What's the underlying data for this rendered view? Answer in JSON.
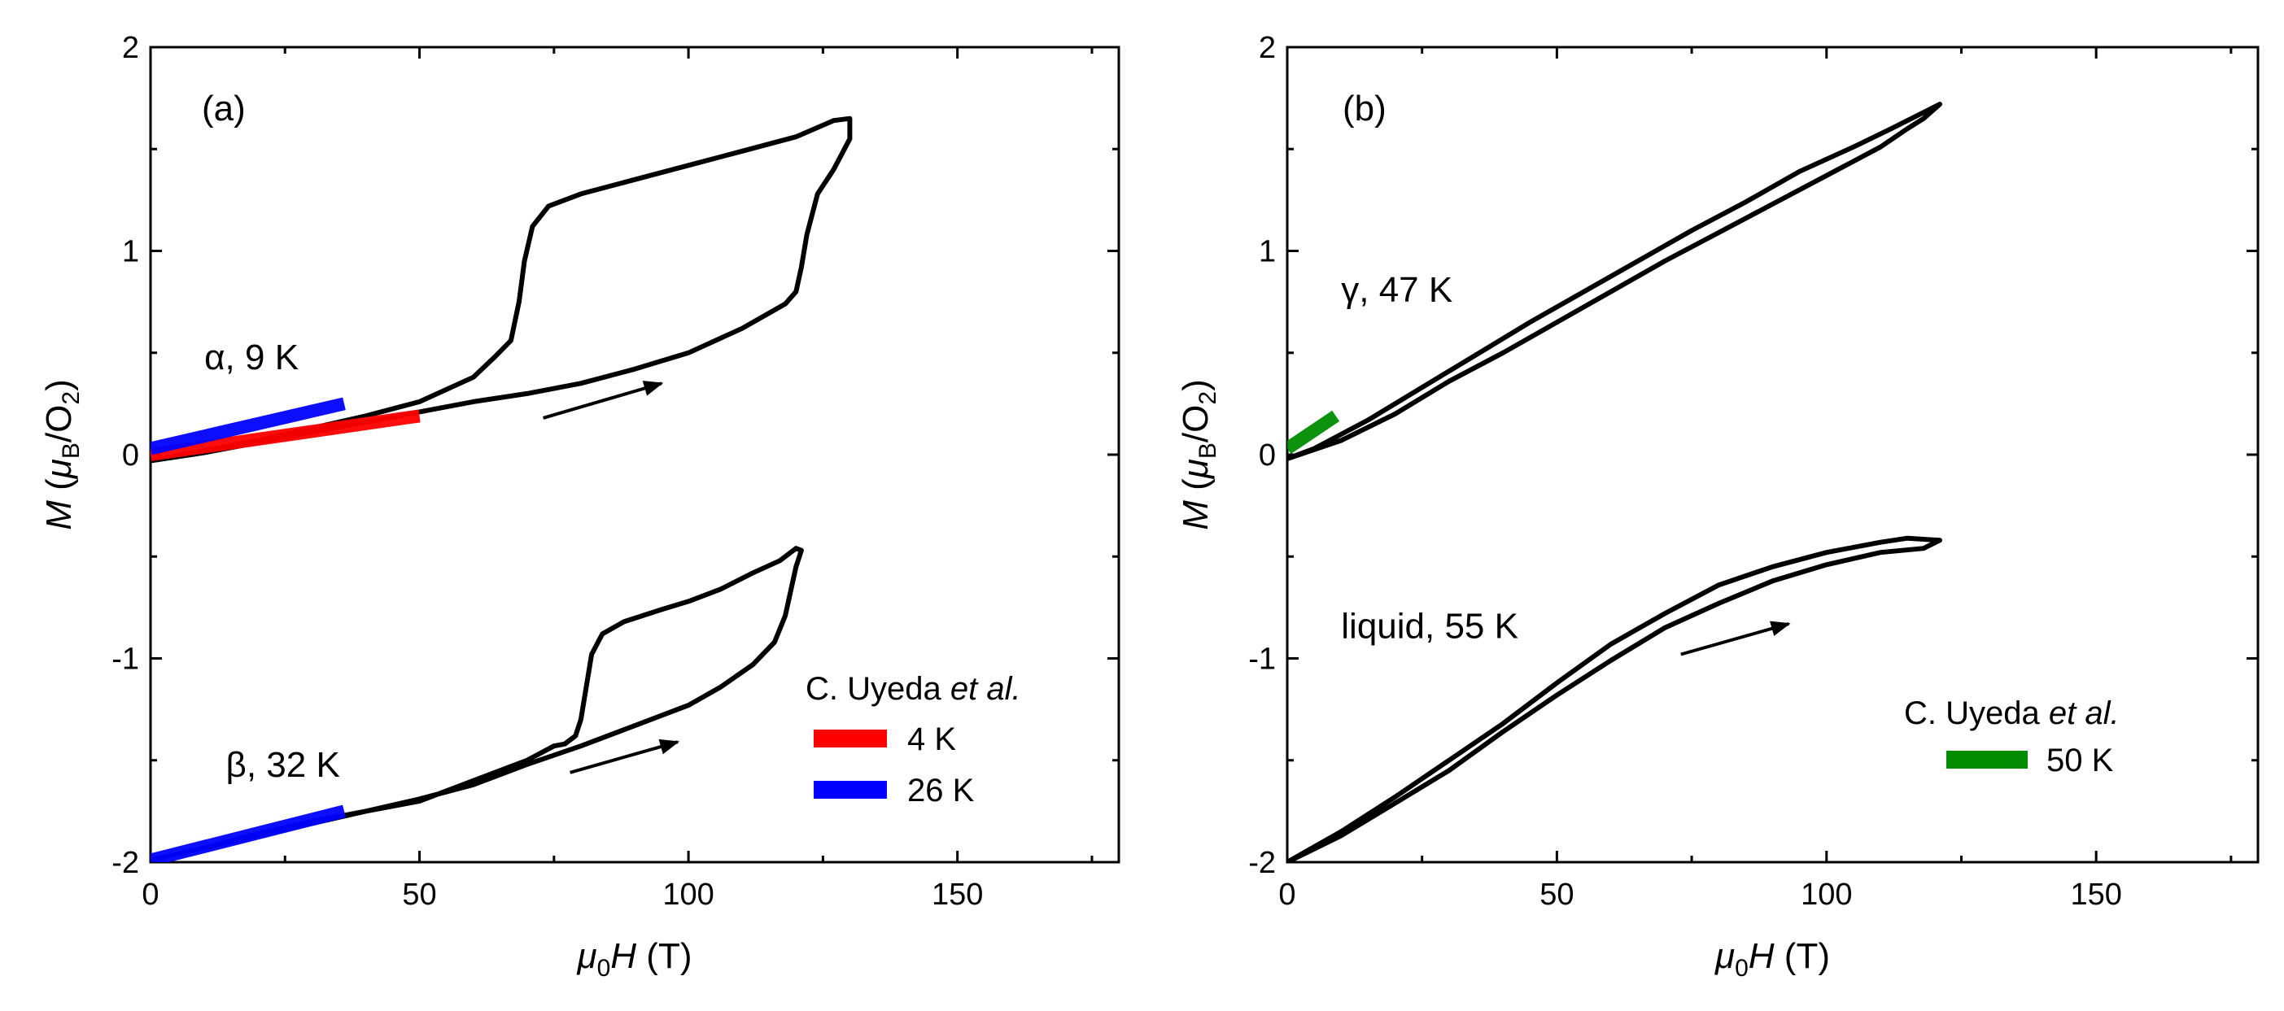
{
  "chart_data": [
    {
      "type": "line",
      "panel_label": "(a)",
      "xlabel": {
        "mu": "μ",
        "sub": "0",
        "var": "H",
        "unit": " (T)"
      },
      "ylabel": {
        "var": "M",
        "open": " (",
        "mu": "μ",
        "sub": "B",
        "mid": "/O",
        "sub2": "2",
        "close": ")"
      },
      "xlim": [
        0,
        180
      ],
      "ylim": [
        -2,
        2
      ],
      "x_ticks": [
        0,
        50,
        100,
        150
      ],
      "x_tick_labels": [
        "0",
        "50",
        "100",
        "150"
      ],
      "y_ticks": [
        -2,
        -1,
        0,
        1,
        2
      ],
      "y_tick_labels": [
        "-2",
        "-1",
        "0",
        "1",
        "2"
      ],
      "annotations": [
        {
          "id": "alpha",
          "text": "α, 9 K",
          "x": 10,
          "y": 0.42
        },
        {
          "id": "beta",
          "text": "β, 32 K",
          "x": 14,
          "y": -1.58
        }
      ],
      "arrows": [
        {
          "from": [
            73,
            0.18
          ],
          "to": [
            95,
            0.35
          ]
        },
        {
          "from": [
            78,
            -1.56
          ],
          "to": [
            98,
            -1.41
          ]
        }
      ],
      "series": [
        {
          "name": "α, 9 K",
          "color": "#000000",
          "points": [
            [
              0,
              -0.03
            ],
            [
              10,
              0.02
            ],
            [
              20,
              0.07
            ],
            [
              30,
              0.13
            ],
            [
              40,
              0.19
            ],
            [
              50,
              0.26
            ],
            [
              60,
              0.38
            ],
            [
              64,
              0.48
            ],
            [
              67,
              0.56
            ],
            [
              68.5,
              0.75
            ],
            [
              69.5,
              0.95
            ],
            [
              71,
              1.12
            ],
            [
              74,
              1.22
            ],
            [
              80,
              1.28
            ],
            [
              90,
              1.35
            ],
            [
              100,
              1.42
            ],
            [
              110,
              1.49
            ],
            [
              120,
              1.56
            ],
            [
              127,
              1.64
            ],
            [
              130,
              1.65
            ],
            [
              130,
              1.55
            ],
            [
              127,
              1.4
            ],
            [
              124,
              1.28
            ],
            [
              122,
              1.08
            ],
            [
              121,
              0.92
            ],
            [
              120,
              0.8
            ],
            [
              118,
              0.74
            ],
            [
              116,
              0.71
            ],
            [
              110,
              0.62
            ],
            [
              100,
              0.5
            ],
            [
              90,
              0.42
            ],
            [
              80,
              0.35
            ],
            [
              70,
              0.3
            ],
            [
              60,
              0.26
            ],
            [
              50,
              0.21
            ],
            [
              40,
              0.16
            ],
            [
              30,
              0.11
            ],
            [
              20,
              0.06
            ],
            [
              10,
              0.01
            ],
            [
              0,
              -0.03
            ]
          ]
        },
        {
          "name": "β, 32 K",
          "color": "#000000",
          "points": [
            [
              0,
              -1.99
            ],
            [
              10,
              -1.93
            ],
            [
              20,
              -1.86
            ],
            [
              30,
              -1.8
            ],
            [
              40,
              -1.75
            ],
            [
              50,
              -1.7
            ],
            [
              60,
              -1.6
            ],
            [
              70,
              -1.5
            ],
            [
              75,
              -1.43
            ],
            [
              77,
              -1.42
            ],
            [
              79,
              -1.38
            ],
            [
              80,
              -1.3
            ],
            [
              81,
              -1.14
            ],
            [
              82,
              -0.98
            ],
            [
              84,
              -0.88
            ],
            [
              88,
              -0.82
            ],
            [
              95,
              -0.76
            ],
            [
              100,
              -0.72
            ],
            [
              106,
              -0.66
            ],
            [
              112,
              -0.58
            ],
            [
              117,
              -0.52
            ],
            [
              120,
              -0.46
            ],
            [
              121,
              -0.47
            ],
            [
              120,
              -0.55
            ],
            [
              119,
              -0.67
            ],
            [
              118,
              -0.79
            ],
            [
              116,
              -0.92
            ],
            [
              112,
              -1.03
            ],
            [
              106,
              -1.14
            ],
            [
              100,
              -1.23
            ],
            [
              90,
              -1.33
            ],
            [
              80,
              -1.43
            ],
            [
              70,
              -1.52
            ],
            [
              60,
              -1.62
            ],
            [
              50,
              -1.69
            ],
            [
              40,
              -1.75
            ],
            [
              30,
              -1.81
            ],
            [
              20,
              -1.87
            ],
            [
              10,
              -1.93
            ],
            [
              0,
              -1.99
            ]
          ]
        }
      ],
      "reference_lines": [
        {
          "name": "4 K",
          "color": "#ff0000",
          "from": [
            0,
            0.0
          ],
          "to": [
            50,
            0.19
          ]
        },
        {
          "name": "26 K",
          "color": "#0000ff",
          "from": [
            0,
            0.03
          ],
          "to": [
            36,
            0.25
          ]
        },
        {
          "name": "26 K",
          "color": "#0000ff",
          "from": [
            0,
            -1.99
          ],
          "to": [
            36,
            -1.75
          ]
        }
      ],
      "legend": {
        "title_main": "C. Uyeda ",
        "title_italic": "et al.",
        "position": "bottom-right",
        "entries": [
          {
            "label": "4 K",
            "color": "#ff0000"
          },
          {
            "label": "26 K",
            "color": "#0000ff"
          }
        ]
      }
    },
    {
      "type": "line",
      "panel_label": "(b)",
      "xlabel": {
        "mu": "μ",
        "sub": "0",
        "var": "H",
        "unit": " (T)"
      },
      "ylabel": {
        "var": "M",
        "open": " (",
        "mu": "μ",
        "sub": "B",
        "mid": "/O",
        "sub2": "2",
        "close": ")"
      },
      "xlim": [
        0,
        180
      ],
      "ylim": [
        -2,
        2
      ],
      "x_ticks": [
        0,
        50,
        100,
        150
      ],
      "x_tick_labels": [
        "0",
        "50",
        "100",
        "150"
      ],
      "y_ticks": [
        -2,
        -1,
        0,
        1,
        2
      ],
      "y_tick_labels": [
        "-2",
        "-1",
        "0",
        "1",
        "2"
      ],
      "annotations": [
        {
          "id": "gamma",
          "text": "γ, 47 K",
          "x": 10,
          "y": 0.75
        },
        {
          "id": "liquid",
          "text": "liquid, 55 K",
          "x": 10,
          "y": -0.9
        }
      ],
      "arrows": [
        {
          "from": [
            73,
            -0.98
          ],
          "to": [
            93,
            -0.83
          ]
        }
      ],
      "series": [
        {
          "name": "γ, 47 K",
          "color": "#000000",
          "points": [
            [
              0,
              -0.02
            ],
            [
              10,
              0.07
            ],
            [
              20,
              0.2
            ],
            [
              30,
              0.36
            ],
            [
              40,
              0.5
            ],
            [
              50,
              0.65
            ],
            [
              60,
              0.8
            ],
            [
              70,
              0.95
            ],
            [
              80,
              1.09
            ],
            [
              90,
              1.23
            ],
            [
              100,
              1.37
            ],
            [
              110,
              1.51
            ],
            [
              115,
              1.6
            ],
            [
              118,
              1.65
            ],
            [
              121,
              1.72
            ],
            [
              118,
              1.68
            ],
            [
              112,
              1.6
            ],
            [
              105,
              1.51
            ],
            [
              95,
              1.39
            ],
            [
              85,
              1.24
            ],
            [
              75,
              1.1
            ],
            [
              65,
              0.95
            ],
            [
              55,
              0.8
            ],
            [
              45,
              0.65
            ],
            [
              35,
              0.49
            ],
            [
              25,
              0.33
            ],
            [
              15,
              0.17
            ],
            [
              5,
              0.03
            ],
            [
              0,
              -0.02
            ]
          ]
        },
        {
          "name": "liquid, 55 K",
          "color": "#000000",
          "points": [
            [
              0,
              -2.0
            ],
            [
              10,
              -1.85
            ],
            [
              20,
              -1.68
            ],
            [
              30,
              -1.5
            ],
            [
              40,
              -1.32
            ],
            [
              50,
              -1.12
            ],
            [
              60,
              -0.93
            ],
            [
              70,
              -0.78
            ],
            [
              80,
              -0.64
            ],
            [
              90,
              -0.55
            ],
            [
              100,
              -0.48
            ],
            [
              110,
              -0.43
            ],
            [
              115,
              -0.41
            ],
            [
              121,
              -0.42
            ],
            [
              118,
              -0.46
            ],
            [
              110,
              -0.48
            ],
            [
              100,
              -0.54
            ],
            [
              90,
              -0.62
            ],
            [
              80,
              -0.73
            ],
            [
              70,
              -0.85
            ],
            [
              60,
              -1.01
            ],
            [
              50,
              -1.18
            ],
            [
              40,
              -1.36
            ],
            [
              30,
              -1.55
            ],
            [
              20,
              -1.71
            ],
            [
              10,
              -1.87
            ],
            [
              0,
              -2.0
            ]
          ]
        }
      ],
      "reference_lines": [
        {
          "name": "50 K",
          "color": "#008c00",
          "from": [
            0,
            0.03
          ],
          "to": [
            9,
            0.19
          ]
        }
      ],
      "legend": {
        "title_main": "C. Uyeda ",
        "title_italic": "et al.",
        "position": "bottom-right",
        "entries": [
          {
            "label": "50 K",
            "color": "#008c00"
          }
        ]
      }
    }
  ]
}
